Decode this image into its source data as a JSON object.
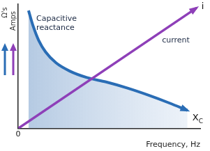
{
  "chart_data": {
    "type": "line",
    "xlabel": "Frequency, Hz",
    "ylabel": [
      {
        "text": "Ω's",
        "series": "Capacitive reactance"
      },
      {
        "text": "Amps",
        "series": "current"
      }
    ],
    "series": [
      {
        "name": "Capacitive reactance",
        "color": "#2a6db5",
        "marker": "none",
        "line_style": "solid",
        "x": [
          0.57,
          0.83,
          1.13,
          1.51,
          2.08,
          2.83,
          3.77,
          4.83,
          6.04,
          7.17,
          8.3,
          9.3
        ],
        "values": [
          9.49,
          8.21,
          7.08,
          6.15,
          5.28,
          4.62,
          4.1,
          3.74,
          3.23,
          2.67,
          2.05,
          1.45
        ]
      },
      {
        "name": "current",
        "color": "#8e3fb8",
        "marker": "none",
        "line_style": "solid",
        "x": [
          0,
          9.8
        ],
        "values": [
          0,
          9.7
        ]
      }
    ],
    "annotations": [
      {
        "text": "i",
        "series": "current"
      },
      {
        "text": "X",
        "subscript": "C",
        "series": "Capacitive reactance"
      }
    ],
    "xlim": [
      0,
      10
    ],
    "ylim": [
      0,
      10
    ],
    "xticks": [
      0
    ],
    "yticks": [],
    "grid": false,
    "tick_labels": "x"
  }
}
